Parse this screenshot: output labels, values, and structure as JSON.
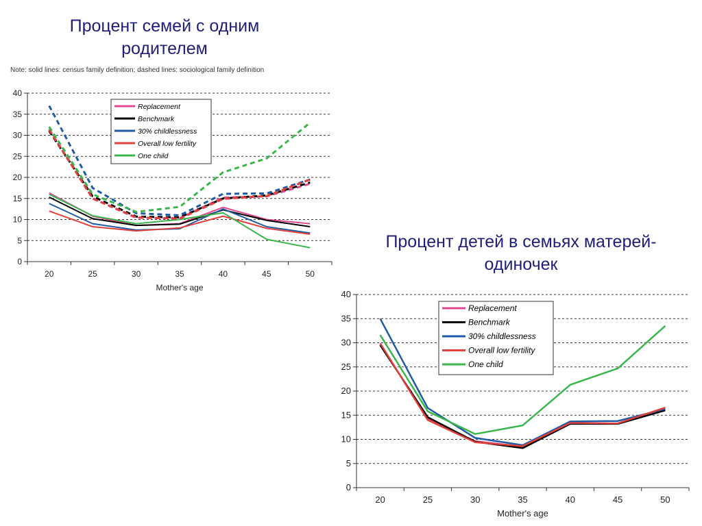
{
  "title_left": "Процент семей с одним родителем",
  "title_right": "Процент детей в семьях матерей-одиночек",
  "note": "Note: solid lines: census family definition; dashed lines: sociological family definition",
  "colors": {
    "Replacement": "#e0488f",
    "Benchmark": "#000000",
    "30% childlessness": "#1f5aa6",
    "Overall low fertility": "#e2403a",
    "One child": "#3ab54a"
  },
  "chart_data": [
    {
      "type": "line",
      "x": [
        20,
        25,
        30,
        35,
        40,
        45,
        50
      ],
      "xlabel": "Mother's age",
      "ylabel": "",
      "ylim": [
        0,
        40
      ],
      "yticks": [
        0,
        5,
        10,
        15,
        20,
        25,
        30,
        35,
        40
      ],
      "grid": true,
      "legend": [
        "Replacement",
        "Benchmark",
        "30% childlessness",
        "Overall low fertility",
        "One child"
      ],
      "legend_position": "top-center",
      "series": [
        {
          "name": "Replacement",
          "style": "solid",
          "values": [
            16.3,
            10.8,
            8.6,
            9.0,
            12.9,
            10.0,
            9.0
          ]
        },
        {
          "name": "Benchmark",
          "style": "solid",
          "values": [
            15.3,
            10.2,
            8.6,
            8.9,
            12.3,
            9.8,
            8.3
          ]
        },
        {
          "name": "30% childlessness",
          "style": "solid",
          "values": [
            13.8,
            9.0,
            7.5,
            7.8,
            12.5,
            8.3,
            6.8
          ]
        },
        {
          "name": "Overall low fertility",
          "style": "solid",
          "values": [
            12.0,
            8.3,
            7.3,
            8.0,
            10.8,
            7.9,
            6.5
          ]
        },
        {
          "name": "One child",
          "style": "solid",
          "values": [
            16.0,
            10.9,
            9.0,
            10.0,
            11.6,
            5.3,
            3.3
          ]
        },
        {
          "name": "Replacement",
          "style": "dashed",
          "values": [
            31.5,
            15.0,
            10.4,
            10.3,
            15.2,
            15.5,
            18.5
          ]
        },
        {
          "name": "Benchmark",
          "style": "dashed",
          "values": [
            31.0,
            15.5,
            10.7,
            10.5,
            15.0,
            15.7,
            18.8
          ]
        },
        {
          "name": "30% childlessness",
          "style": "dashed",
          "values": [
            37.0,
            17.5,
            11.5,
            11.0,
            16.1,
            16.2,
            19.5
          ]
        },
        {
          "name": "Overall low fertility",
          "style": "dashed",
          "values": [
            31.3,
            15.0,
            10.5,
            10.2,
            14.9,
            15.6,
            19.5
          ]
        },
        {
          "name": "One child",
          "style": "dashed",
          "values": [
            32.0,
            16.0,
            11.8,
            13.0,
            21.2,
            24.5,
            33.0
          ]
        }
      ]
    },
    {
      "type": "line",
      "x": [
        20,
        25,
        30,
        35,
        40,
        45,
        50
      ],
      "xlabel": "Mother's age",
      "ylabel": "",
      "ylim": [
        0,
        40
      ],
      "yticks": [
        0,
        5,
        10,
        15,
        20,
        25,
        30,
        35,
        40
      ],
      "grid": true,
      "legend": [
        "Replacement",
        "Benchmark",
        "30% childlessness",
        "Overall low fertility",
        "One child"
      ],
      "legend_position": "top-center",
      "series": [
        {
          "name": "Replacement",
          "style": "solid",
          "values": [
            29.8,
            14.2,
            9.6,
            8.5,
            13.3,
            13.3,
            16.5
          ]
        },
        {
          "name": "Benchmark",
          "style": "solid",
          "values": [
            29.5,
            14.6,
            9.5,
            8.2,
            13.2,
            13.2,
            16.0
          ]
        },
        {
          "name": "30% childlessness",
          "style": "solid",
          "values": [
            35.0,
            16.5,
            10.3,
            8.8,
            13.7,
            13.8,
            16.3
          ]
        },
        {
          "name": "Overall low fertility",
          "style": "solid",
          "values": [
            29.9,
            14.0,
            9.4,
            8.6,
            13.4,
            13.3,
            16.6
          ]
        },
        {
          "name": "One child",
          "style": "solid",
          "values": [
            31.6,
            15.8,
            11.1,
            12.9,
            21.3,
            24.7,
            33.5
          ]
        }
      ]
    }
  ]
}
